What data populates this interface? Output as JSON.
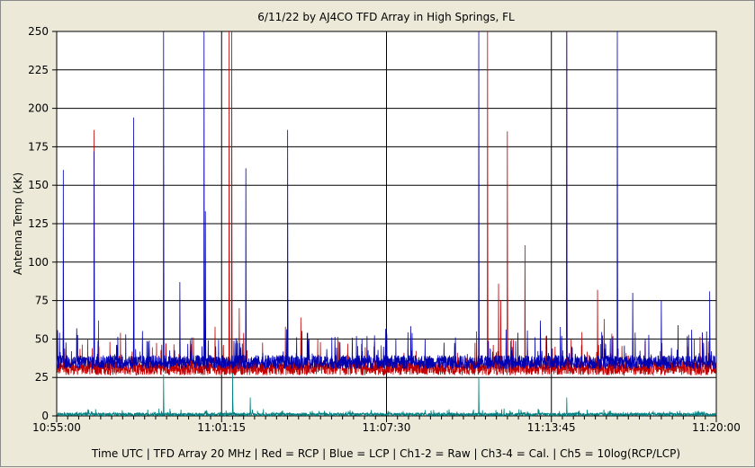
{
  "chart_data": {
    "type": "line",
    "title": "6/11/22  by  AJ4CO TFD Array  in  High Springs, FL",
    "ylabel": "Antenna Temp (kK)",
    "xlabel": "Time UTC | TFD Array 20 MHz | Red = RCP | Blue = LCP | Ch1-2 = Raw | Ch3-4 = Cal. | Ch5 = 10log(RCP/LCP)",
    "ylim": [
      0,
      250
    ],
    "y_ticks": [
      "0",
      "25",
      "50",
      "75",
      "100",
      "125",
      "150",
      "175",
      "200",
      "225",
      "250"
    ],
    "x_tick_labels": [
      "10:55:00",
      "11:01:15",
      "11:07:30",
      "11:13:45",
      "11:20:00"
    ],
    "x_range_seconds": [
      0,
      1500
    ],
    "grid": true,
    "series": [
      {
        "name": "RCP",
        "color": "#c00000",
        "baseline": 31,
        "spikes": [
          [
            15,
            55
          ],
          [
            85,
            186
          ],
          [
            95,
            62
          ],
          [
            175,
            87
          ],
          [
            360,
            58
          ],
          [
            392,
            250
          ],
          [
            398,
            250
          ],
          [
            415,
            70
          ],
          [
            520,
            58
          ],
          [
            555,
            64
          ],
          [
            955,
            55
          ],
          [
            980,
            250
          ],
          [
            1005,
            86
          ],
          [
            1010,
            75
          ],
          [
            1025,
            185
          ],
          [
            1065,
            111
          ],
          [
            1160,
            250
          ],
          [
            1230,
            82
          ],
          [
            1245,
            63
          ]
        ]
      },
      {
        "name": "LCP",
        "color": "#0000b0",
        "baseline": 35,
        "spikes": [
          [
            15,
            160
          ],
          [
            85,
            172
          ],
          [
            175,
            194
          ],
          [
            243,
            250
          ],
          [
            280,
            87
          ],
          [
            335,
            250
          ],
          [
            338,
            133
          ],
          [
            430,
            161
          ],
          [
            525,
            186
          ],
          [
            960,
            250
          ],
          [
            1100,
            62
          ],
          [
            1160,
            250
          ],
          [
            1275,
            250
          ],
          [
            1310,
            80
          ],
          [
            1375,
            75
          ],
          [
            1485,
            81
          ]
        ]
      },
      {
        "name": "10log(RCP/LCP)",
        "color": "#008080",
        "baseline": 1,
        "spikes": [
          [
            243,
            27
          ],
          [
            400,
            28
          ],
          [
            440,
            12
          ],
          [
            960,
            25
          ],
          [
            1160,
            12
          ]
        ]
      }
    ]
  }
}
